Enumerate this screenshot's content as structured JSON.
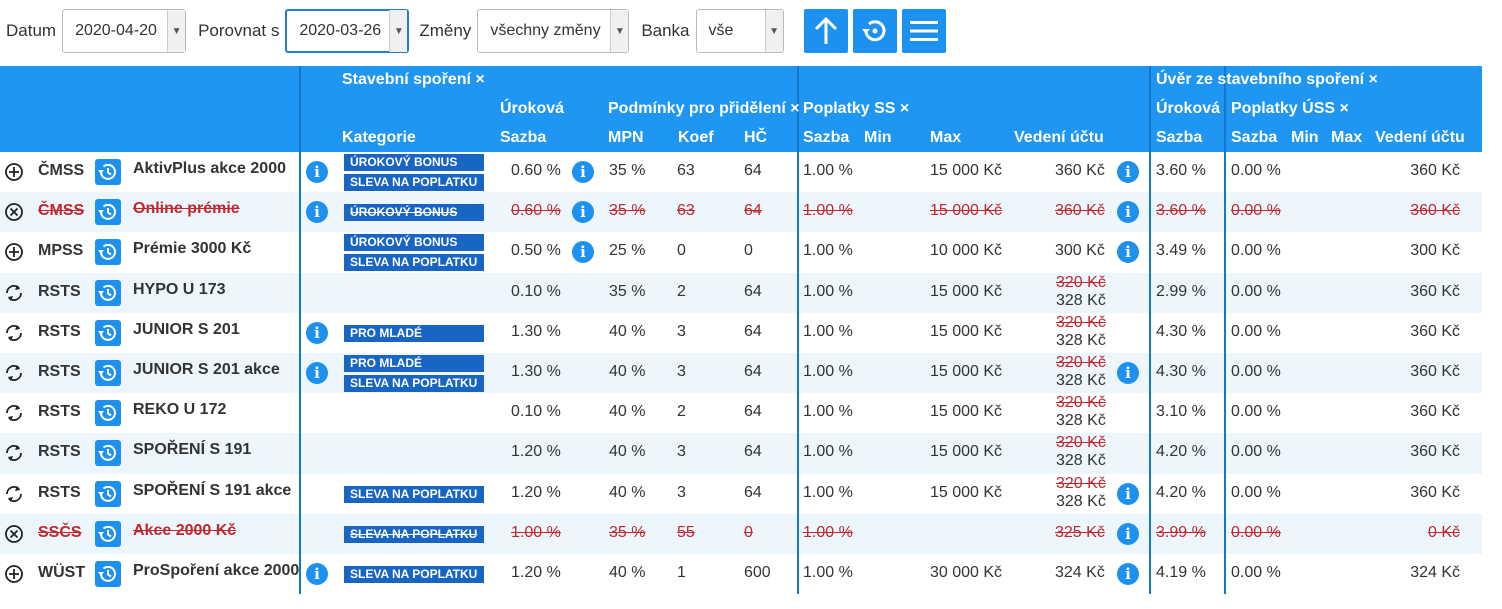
{
  "toolbar": {
    "datum_label": "Datum",
    "datum_value": "2020-04-20",
    "porovnat_label": "Porovnat s",
    "porovnat_value": "2020-03-26",
    "zmeny_label": "Změny",
    "zmeny_value": "všechny změny",
    "banka_label": "Banka",
    "banka_value": "vše",
    "buttons": [
      "arrow-up-icon",
      "history-icon",
      "menu-icon"
    ]
  },
  "header": {
    "group_ss": "Stavební spoření ×",
    "group_uss": "Úvěr ze stavebního spoření ×",
    "urokova": "Úroková",
    "podminky": "Podmínky pro přidělení ×",
    "poplatky_ss": "Poplatky SS ×",
    "urokova2": "Úroková",
    "poplatky_uss": "Poplatky ÚSS ×",
    "kategorie": "Kategorie",
    "sazba": "Sazba",
    "mpn": "MPN",
    "koef": "Koef",
    "hc": "HČ",
    "p_sazba": "Sazba",
    "p_min": "Min",
    "p_max": "Max",
    "p_vedeni": "Vedení účtu",
    "u_sazba": "Sazba",
    "u_p_sazba": "Sazba",
    "u_min": "Min",
    "u_max": "Max",
    "u_vedeni": "Vedení účtu"
  },
  "rows": [
    {
      "status": "added",
      "bank": "ČMSS",
      "product": "AktivPlus akce 2000",
      "info1": true,
      "tags": [
        "ÚROKOVÝ BONUS",
        "SLEVA NA POPLATKU"
      ],
      "sazba": "0.60 %",
      "info2": true,
      "mpn": "35 %",
      "koef": "63",
      "hc": "64",
      "p_sazba": "1.00 %",
      "p_max": "15 000 Kč",
      "vedeni_old": "",
      "vedeni": "360 Kč",
      "info3": true,
      "u_sazba": "3.60 %",
      "u_p_sazba": "0.00 %",
      "u_vedeni": "360 Kč",
      "struck": false
    },
    {
      "status": "removed",
      "bank": "ČMSS",
      "product": "Online prémie",
      "info1": true,
      "tags": [
        "ÚROKOVÝ BONUS"
      ],
      "sazba": "0.60 %",
      "info2": true,
      "mpn": "35 %",
      "koef": "63",
      "hc": "64",
      "p_sazba": "1.00 %",
      "p_max": "15 000 Kč",
      "vedeni_old": "",
      "vedeni": "360 Kč",
      "info3": true,
      "u_sazba": "3.60 %",
      "u_p_sazba": "0.00 %",
      "u_vedeni": "360 Kč",
      "struck": true
    },
    {
      "status": "added",
      "bank": "MPSS",
      "product": "Prémie 3000 Kč",
      "info1": false,
      "tags": [
        "ÚROKOVÝ BONUS",
        "SLEVA NA POPLATKU"
      ],
      "sazba": "0.50 %",
      "info2": true,
      "mpn": "25 %",
      "koef": "0",
      "hc": "0",
      "p_sazba": "1.00 %",
      "p_max": "10 000 Kč",
      "vedeni_old": "",
      "vedeni": "300 Kč",
      "info3": true,
      "u_sazba": "3.49 %",
      "u_p_sazba": "0.00 %",
      "u_vedeni": "300 Kč",
      "struck": false
    },
    {
      "status": "changed",
      "bank": "RSTS",
      "product": "HYPO U 173",
      "info1": false,
      "tags": [],
      "sazba": "0.10 %",
      "info2": false,
      "mpn": "35 %",
      "koef": "2",
      "hc": "64",
      "p_sazba": "1.00 %",
      "p_max": "15 000 Kč",
      "vedeni_old": "320 Kč",
      "vedeni": "328 Kč",
      "info3": false,
      "u_sazba": "2.99 %",
      "u_p_sazba": "0.00 %",
      "u_vedeni": "360 Kč",
      "struck": false
    },
    {
      "status": "changed",
      "bank": "RSTS",
      "product": "JUNIOR S 201",
      "info1": true,
      "tags": [
        "PRO MLADÉ"
      ],
      "sazba": "1.30 %",
      "info2": false,
      "mpn": "40 %",
      "koef": "3",
      "hc": "64",
      "p_sazba": "1.00 %",
      "p_max": "15 000 Kč",
      "vedeni_old": "320 Kč",
      "vedeni": "328 Kč",
      "info3": false,
      "u_sazba": "4.30 %",
      "u_p_sazba": "0.00 %",
      "u_vedeni": "360 Kč",
      "struck": false
    },
    {
      "status": "changed",
      "bank": "RSTS",
      "product": "JUNIOR S 201 akce",
      "info1": true,
      "tags": [
        "PRO MLADÉ",
        "SLEVA NA POPLATKU"
      ],
      "sazba": "1.30 %",
      "info2": false,
      "mpn": "40 %",
      "koef": "3",
      "hc": "64",
      "p_sazba": "1.00 %",
      "p_max": "15 000 Kč",
      "vedeni_old": "320 Kč",
      "vedeni": "328 Kč",
      "info3": true,
      "u_sazba": "4.30 %",
      "u_p_sazba": "0.00 %",
      "u_vedeni": "360 Kč",
      "struck": false
    },
    {
      "status": "changed",
      "bank": "RSTS",
      "product": "REKO U 172",
      "info1": false,
      "tags": [],
      "sazba": "0.10 %",
      "info2": false,
      "mpn": "40 %",
      "koef": "2",
      "hc": "64",
      "p_sazba": "1.00 %",
      "p_max": "15 000 Kč",
      "vedeni_old": "320 Kč",
      "vedeni": "328 Kč",
      "info3": false,
      "u_sazba": "3.10 %",
      "u_p_sazba": "0.00 %",
      "u_vedeni": "360 Kč",
      "struck": false
    },
    {
      "status": "changed",
      "bank": "RSTS",
      "product": "SPOŘENÍ S 191",
      "info1": false,
      "tags": [],
      "sazba": "1.20 %",
      "info2": false,
      "mpn": "40 %",
      "koef": "3",
      "hc": "64",
      "p_sazba": "1.00 %",
      "p_max": "15 000 Kč",
      "vedeni_old": "320 Kč",
      "vedeni": "328 Kč",
      "info3": false,
      "u_sazba": "4.20 %",
      "u_p_sazba": "0.00 %",
      "u_vedeni": "360 Kč",
      "struck": false
    },
    {
      "status": "changed",
      "bank": "RSTS",
      "product": "SPOŘENÍ S 191 akce",
      "info1": false,
      "tags": [
        "SLEVA NA POPLATKU"
      ],
      "sazba": "1.20 %",
      "info2": false,
      "mpn": "40 %",
      "koef": "3",
      "hc": "64",
      "p_sazba": "1.00 %",
      "p_max": "15 000 Kč",
      "vedeni_old": "320 Kč",
      "vedeni": "328 Kč",
      "info3": true,
      "u_sazba": "4.20 %",
      "u_p_sazba": "0.00 %",
      "u_vedeni": "360 Kč",
      "struck": false
    },
    {
      "status": "removed",
      "bank": "SSČS",
      "product": "Akce 2000 Kč",
      "info1": false,
      "tags": [
        "SLEVA NA POPLATKU"
      ],
      "sazba": "1.00 %",
      "info2": false,
      "mpn": "35 %",
      "koef": "55",
      "hc": "0",
      "p_sazba": "1.00 %",
      "p_max": "",
      "vedeni_old": "",
      "vedeni": "325 Kč",
      "info3": true,
      "u_sazba": "3.99 %",
      "u_p_sazba": "0.00 %",
      "u_vedeni": "0 Kč",
      "struck": true
    },
    {
      "status": "added",
      "bank": "WÜST",
      "product": "ProSpoření akce 2000",
      "info1": true,
      "tags": [
        "SLEVA NA POPLATKU"
      ],
      "sazba": "1.20 %",
      "info2": false,
      "mpn": "40 %",
      "koef": "1",
      "hc": "600",
      "p_sazba": "1.00 %",
      "p_max": "30 000 Kč",
      "vedeni_old": "",
      "vedeni": "324 Kč",
      "info3": true,
      "u_sazba": "4.19 %",
      "u_p_sazba": "0.00 %",
      "u_vedeni": "324 Kč",
      "struck": false
    }
  ]
}
